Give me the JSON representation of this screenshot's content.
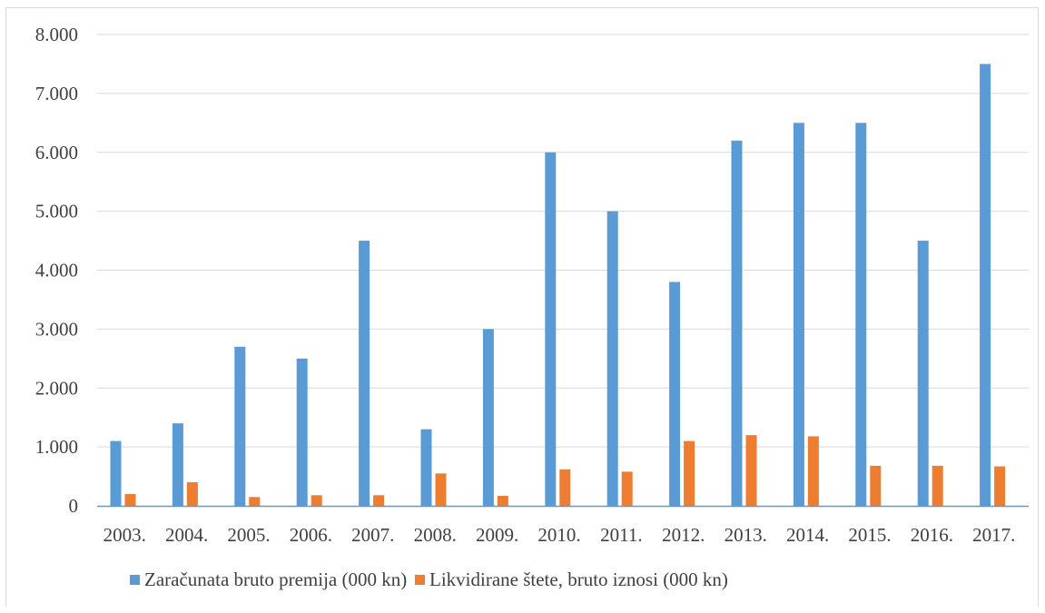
{
  "chart_data": {
    "type": "bar",
    "categories": [
      "2003.",
      "2004.",
      "2005.",
      "2006.",
      "2007.",
      "2008.",
      "2009.",
      "2010.",
      "2011.",
      "2012.",
      "2013.",
      "2014.",
      "2015.",
      "2016.",
      "2017."
    ],
    "series": [
      {
        "name": "Zaračunata bruto premija (000 kn)",
        "color": "#5b9bd5",
        "values": [
          1100,
          1400,
          2700,
          2500,
          4500,
          1300,
          3000,
          6000,
          5000,
          3800,
          6200,
          6500,
          6500,
          4500,
          7500
        ]
      },
      {
        "name": "Likvidirane štete, bruto iznosi (000 kn)",
        "color": "#ed7d31",
        "values": [
          200,
          400,
          150,
          180,
          180,
          550,
          170,
          620,
          580,
          1100,
          1200,
          1180,
          680,
          680,
          670
        ]
      }
    ],
    "title": "",
    "xlabel": "",
    "ylabel": "",
    "ylim": [
      0,
      8000
    ],
    "y_ticks": [
      0,
      1000,
      2000,
      3000,
      4000,
      5000,
      6000,
      7000,
      8000
    ],
    "y_tick_labels": [
      "0",
      "1.000",
      "2.000",
      "3.000",
      "4.000",
      "5.000",
      "6.000",
      "7.000",
      "8.000"
    ],
    "grid": true,
    "legend_position": "bottom"
  }
}
